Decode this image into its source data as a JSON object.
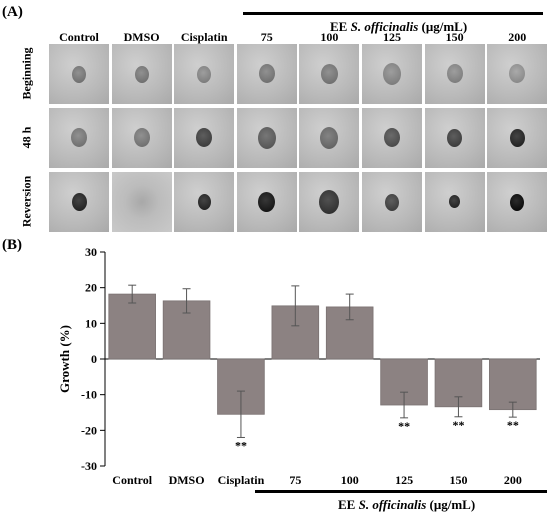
{
  "panel_a": {
    "label": "(A)",
    "columns": [
      "Control",
      "DMSO",
      "Cisplatin",
      "75",
      "100",
      "125",
      "150",
      "200"
    ],
    "rows": [
      "Beginning",
      "48 h",
      "Reversion"
    ],
    "group": {
      "prefix": "EE",
      "species": "S. officinalis",
      "unit": "(μg/mL)"
    }
  },
  "panel_b": {
    "label": "(B)",
    "group": {
      "prefix": "EE",
      "species": "S. officinalis",
      "unit": "(μg/mL)"
    }
  },
  "colors": {
    "bar": "#8c8282",
    "bar_edge": "#7a7272"
  },
  "chart_data": {
    "type": "bar",
    "categories": [
      "Control",
      "DMSO",
      "Cisplatin",
      "75",
      "100",
      "125",
      "150",
      "200"
    ],
    "values": [
      18.2,
      16.3,
      -15.5,
      14.9,
      14.6,
      -12.9,
      -13.4,
      -14.2
    ],
    "errors": [
      2.5,
      3.4,
      6.5,
      5.6,
      3.6,
      3.6,
      2.8,
      2.1
    ],
    "significance": [
      "",
      "",
      "**",
      "",
      "",
      "**",
      "**",
      "**"
    ],
    "ylabel": "Growth (%)",
    "xlabel": "",
    "ylim": [
      -30,
      30
    ],
    "yticks": [
      -30,
      -20,
      -10,
      0,
      10,
      20,
      30
    ]
  }
}
